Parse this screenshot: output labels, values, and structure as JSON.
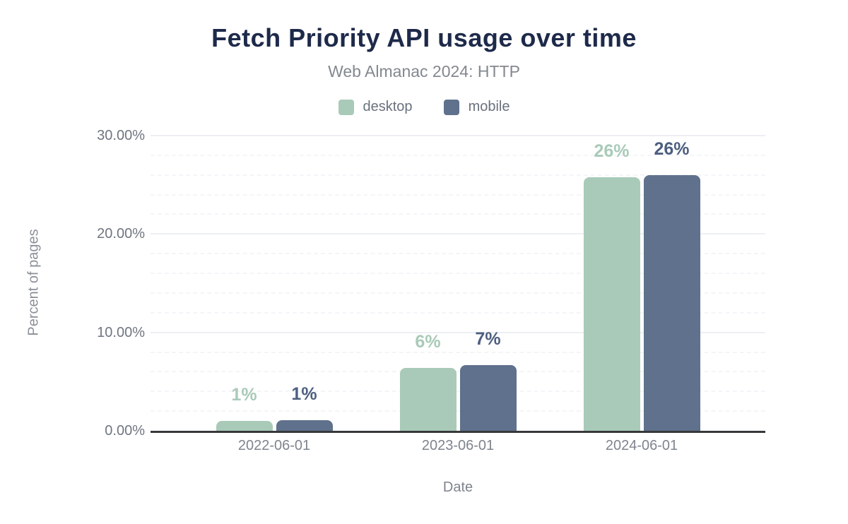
{
  "chart_data": {
    "type": "bar",
    "title": "Fetch Priority API usage over time",
    "subtitle": "Web Almanac 2024: HTTP",
    "xlabel": "Date",
    "ylabel": "Percent of pages",
    "ylim": [
      0,
      30
    ],
    "grid": true,
    "legend_position": "top",
    "yticks": [
      {
        "value": 0,
        "label": "0.00%"
      },
      {
        "value": 10,
        "label": "10.00%"
      },
      {
        "value": 20,
        "label": "20.00%"
      },
      {
        "value": 30,
        "label": "30.00%"
      }
    ],
    "minor_grid_step_pct": 2,
    "categories": [
      "2022-06-01",
      "2023-06-01",
      "2024-06-01"
    ],
    "series": [
      {
        "name": "desktop",
        "color": "#a9cab8",
        "label_color": "#a9cab8",
        "values": [
          1.0,
          6.4,
          25.8
        ],
        "labels": [
          "1%",
          "6%",
          "26%"
        ]
      },
      {
        "name": "mobile",
        "color": "#5f718c",
        "label_color": "#4d5f7f",
        "values": [
          1.1,
          6.7,
          26.0
        ],
        "labels": [
          "1%",
          "7%",
          "26%"
        ]
      }
    ]
  },
  "colors": {
    "title": "#1e2a4a",
    "subtitle": "#83888f",
    "axis_line": "#36383b",
    "major_grid": "#edeff4",
    "minor_grid": "#f4f5f8",
    "tick_text": "#6f7580"
  }
}
